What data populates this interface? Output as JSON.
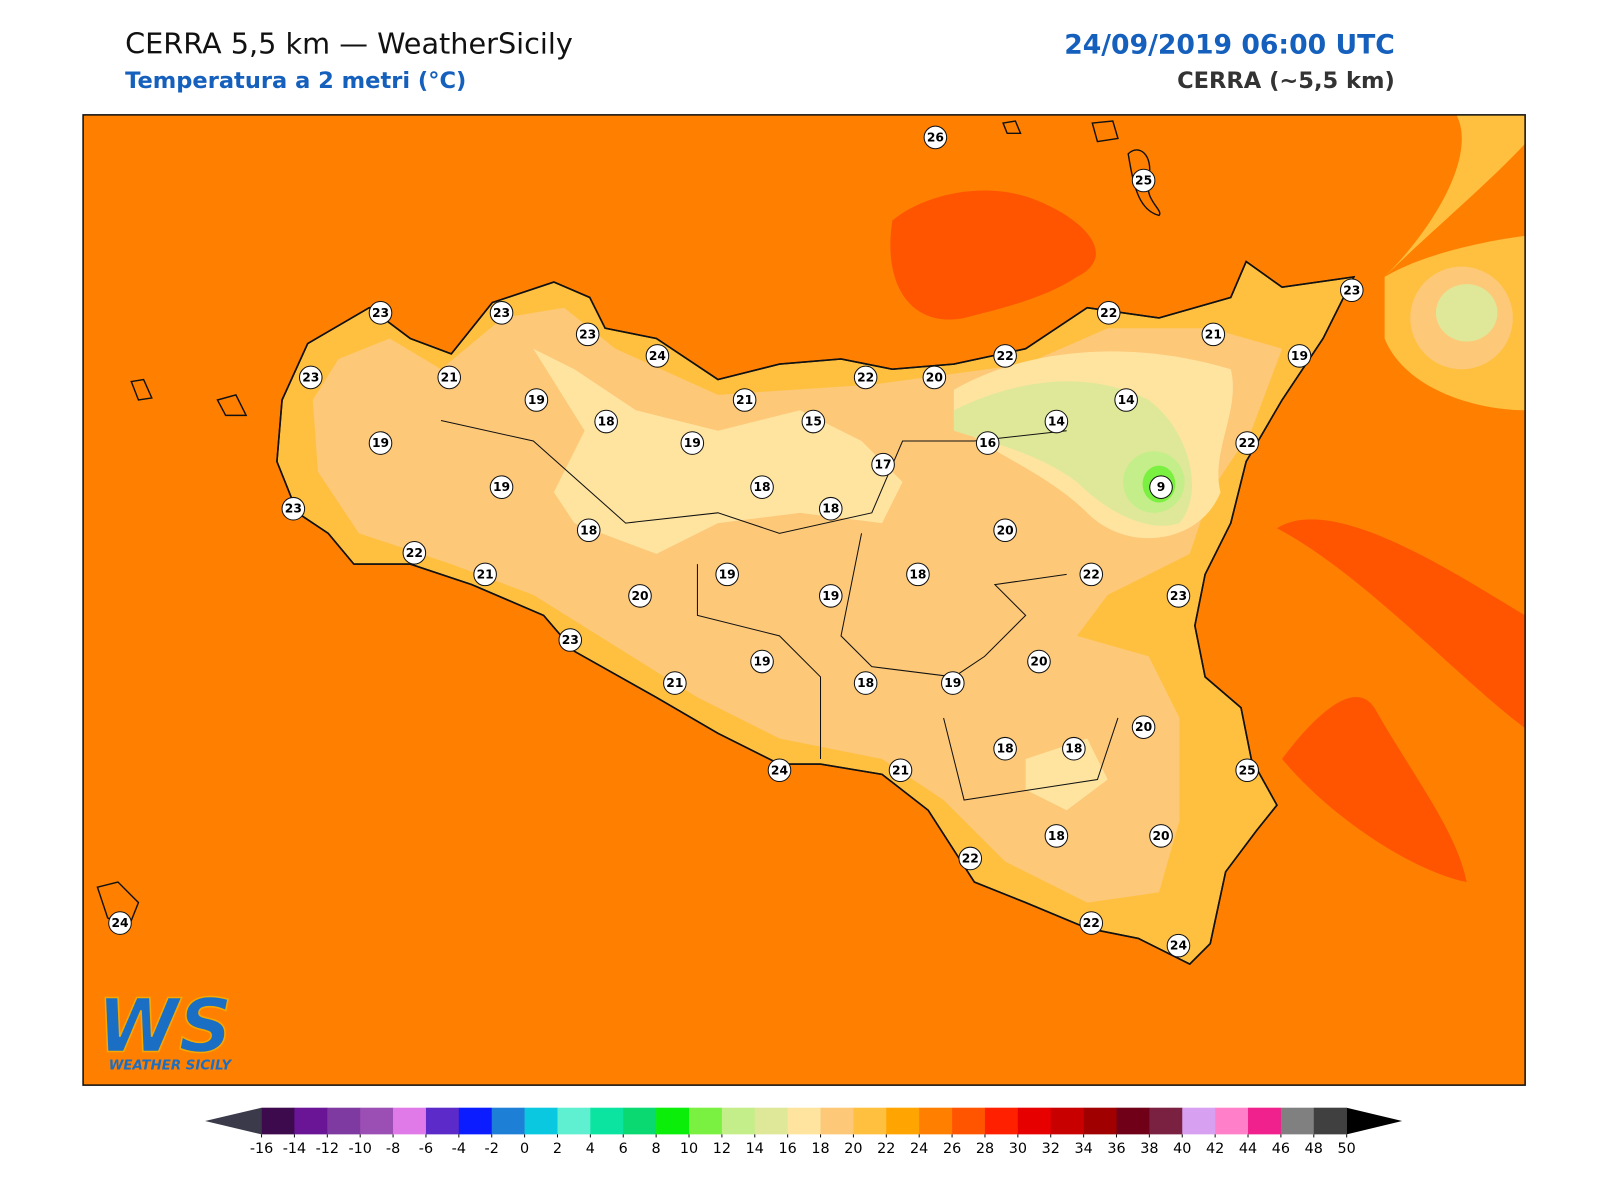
{
  "header": {
    "title": "CERRA 5,5 km — WeatherSicily",
    "subtitle": "Temperatura a 2 metri (°C)",
    "datetime": "24/09/2019 06:00 UTC",
    "model": "CERRA (~5,5 km)"
  },
  "stations": [
    26,
    25,
    23,
    23,
    23,
    24,
    23,
    21,
    19,
    18,
    19,
    21,
    15,
    22,
    20,
    22,
    22,
    21,
    19,
    23,
    14,
    14,
    16,
    17,
    22,
    9,
    19,
    19,
    18,
    18,
    18,
    23,
    22,
    21,
    20,
    19,
    19,
    18,
    20,
    22,
    23,
    23,
    21,
    19,
    18,
    19,
    20,
    20,
    18,
    18,
    25,
    24,
    21,
    22,
    18,
    20,
    22,
    24,
    24
  ],
  "colorbar": {
    "ticks": [
      -16,
      -14,
      -12,
      -10,
      -8,
      -6,
      -4,
      -2,
      0,
      2,
      4,
      6,
      8,
      10,
      12,
      14,
      16,
      18,
      20,
      22,
      24,
      26,
      28,
      30,
      32,
      34,
      36,
      38,
      40,
      42,
      44,
      46,
      48,
      50
    ],
    "colors": [
      "#3d0a4d",
      "#6a1596",
      "#7e3aa0",
      "#9b4fb5",
      "#e07ae8",
      "#5b2ac8",
      "#0b1cff",
      "#1e7fd6",
      "#0ac8e0",
      "#5ef0d0",
      "#0ae4a0",
      "#0ad870",
      "#0aee0a",
      "#7af040",
      "#c4ee8a",
      "#dfe898",
      "#ffe4a0",
      "#fdc878",
      "#ffc040",
      "#ffa400",
      "#ff8000",
      "#ff5500",
      "#ff2000",
      "#e60000",
      "#c80000",
      "#a00000",
      "#700018",
      "#7a2040",
      "#d8a0f0",
      "#ff80c8",
      "#f0208c",
      "#808080",
      "#404040"
    ],
    "under": "#3a3a4a",
    "over": "#000000"
  },
  "logo": {
    "mark": "WS",
    "name": "WEATHER SICILY"
  }
}
